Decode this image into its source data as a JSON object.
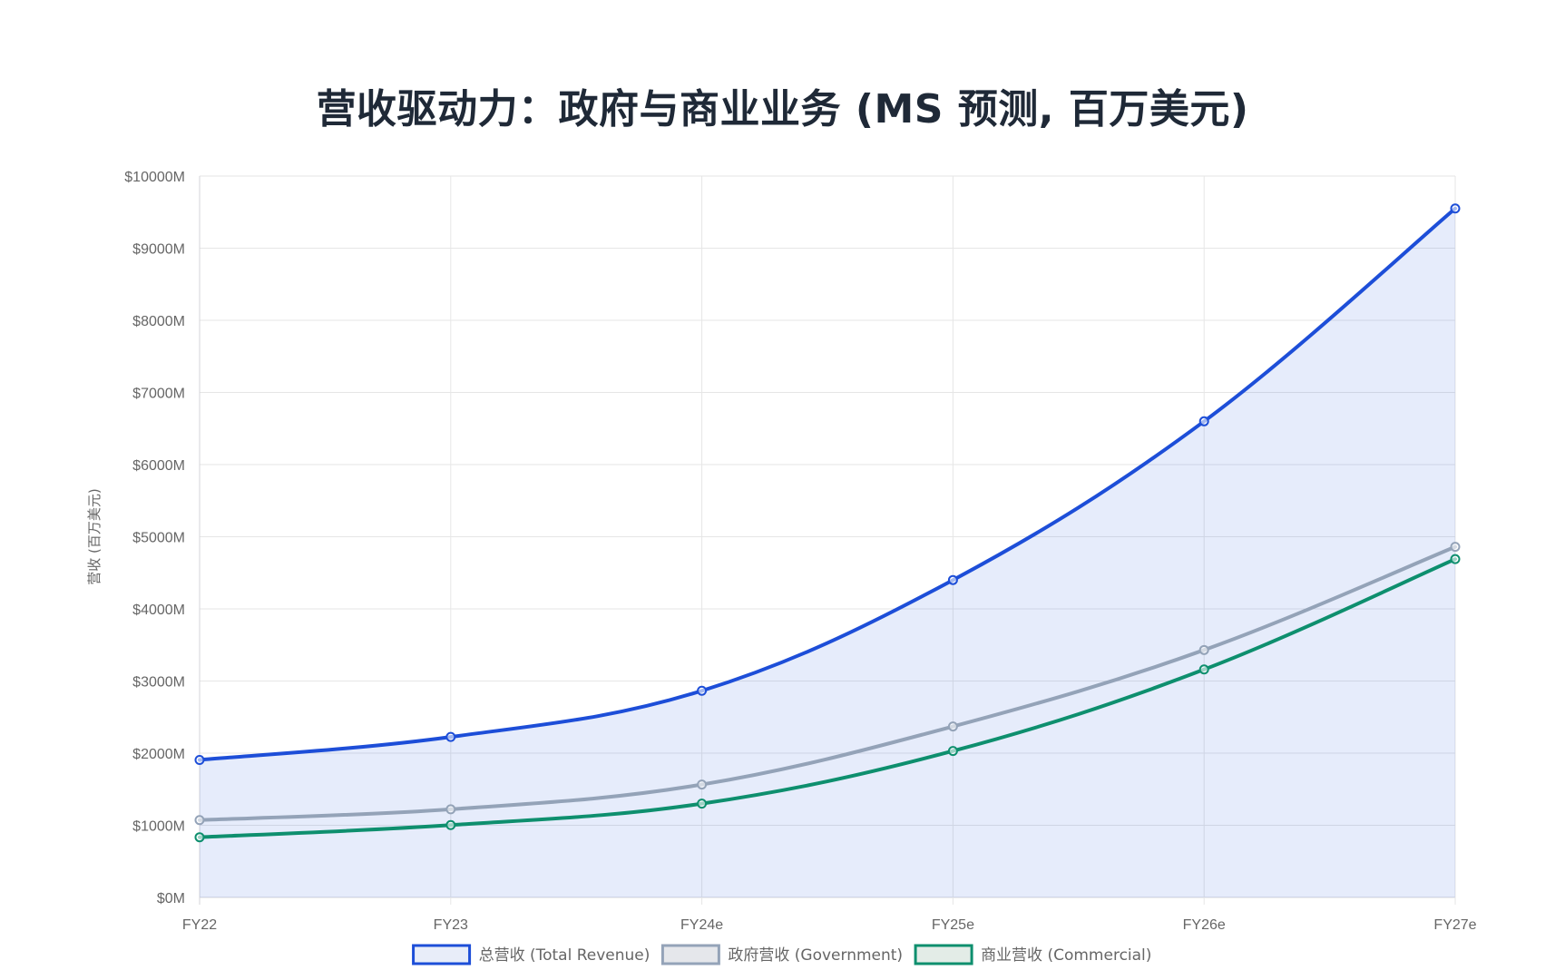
{
  "chart_data": {
    "type": "line",
    "title": "营收驱动力：政府与商业业务 (MS 预测, 百万美元)",
    "xlabel": "",
    "ylabel": "营收 (百万美元)",
    "categories": [
      "FY22",
      "FY23",
      "FY24e",
      "FY25e",
      "FY26e",
      "FY27e"
    ],
    "ylim": [
      0,
      10000
    ],
    "y_ticks": [
      {
        "value": 0,
        "label": "$0M"
      },
      {
        "value": 1000,
        "label": "$1000M"
      },
      {
        "value": 2000,
        "label": "$2000M"
      },
      {
        "value": 3000,
        "label": "$3000M"
      },
      {
        "value": 4000,
        "label": "$4000M"
      },
      {
        "value": 5000,
        "label": "$5000M"
      },
      {
        "value": 6000,
        "label": "$6000M"
      },
      {
        "value": 7000,
        "label": "$7000M"
      },
      {
        "value": 8000,
        "label": "$8000M"
      },
      {
        "value": 9000,
        "label": "$9000M"
      },
      {
        "value": 10000,
        "label": "$10000M"
      }
    ],
    "grid": true,
    "legend_position": "bottom",
    "series": [
      {
        "name": "总营收 (Total Revenue)",
        "key": "total",
        "color": "#1d4ed8",
        "legend_fill": "#e8edf9",
        "area_fill": "rgba(29, 78, 216, 0.11)",
        "filled": true,
        "values": [
          1906,
          2225,
          2865,
          4400,
          6600,
          9550
        ]
      },
      {
        "name": "政府营收 (Government)",
        "key": "government",
        "color": "#94a3b8",
        "legend_fill": "#e5e7eb",
        "filled": false,
        "values": [
          1072,
          1222,
          1565,
          2370,
          3430,
          4860
        ]
      },
      {
        "name": "商业营收 (Commercial)",
        "key": "commercial",
        "color": "#0e8f6e",
        "legend_fill": "#e3ece7",
        "filled": false,
        "values": [
          834,
          1003,
          1300,
          2030,
          3160,
          4690
        ]
      }
    ]
  }
}
